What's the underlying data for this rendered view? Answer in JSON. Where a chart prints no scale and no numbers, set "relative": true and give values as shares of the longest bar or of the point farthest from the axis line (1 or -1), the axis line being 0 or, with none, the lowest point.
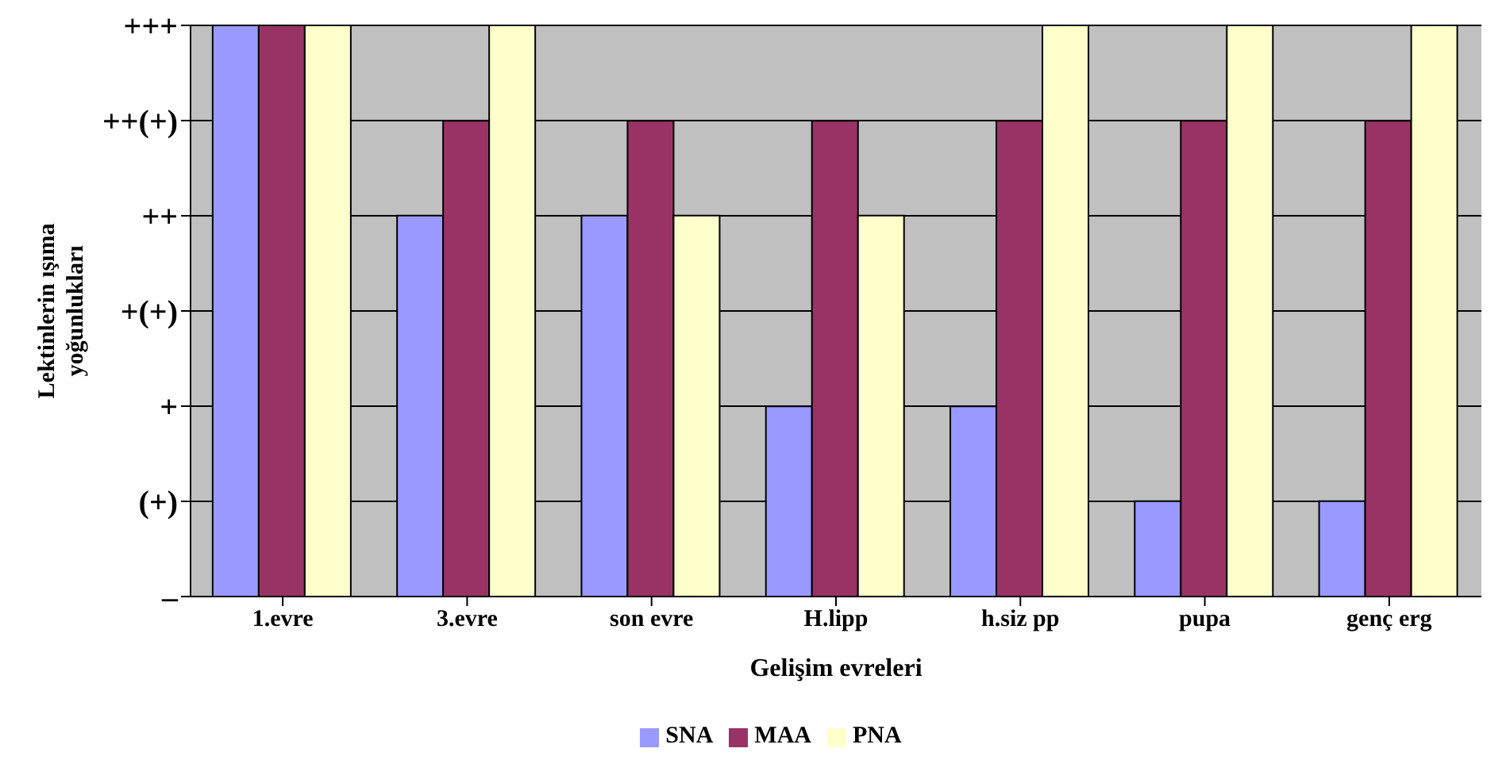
{
  "chart_data": {
    "type": "bar",
    "xlabel": "Gelişim evreleri",
    "ylabel": "Lektinlerin ışıma yoğunlukları",
    "categories": [
      "1.evre",
      "3.evre",
      "son evre",
      "H.lipp",
      "h.siz pp",
      "pupa",
      "genç erg"
    ],
    "series": [
      {
        "name": "SNA",
        "color": "#9999ff",
        "values": [
          1,
          0.667,
          0.667,
          0.333,
          0.333,
          0.167,
          0.167
        ]
      },
      {
        "name": "MAA",
        "color": "#993366",
        "values": [
          1,
          0.833,
          0.833,
          0.833,
          0.833,
          0.833,
          0.833
        ]
      },
      {
        "name": "PNA",
        "color": "#ffffcc",
        "values": [
          1,
          1,
          0.667,
          0.667,
          1,
          1,
          1
        ]
      }
    ],
    "relative": true,
    "annotations": [
      "–",
      "(+)",
      "+",
      "+(+)",
      "++",
      "++(+)",
      "+++"
    ],
    "grid": "y",
    "legend": "bottom"
  }
}
